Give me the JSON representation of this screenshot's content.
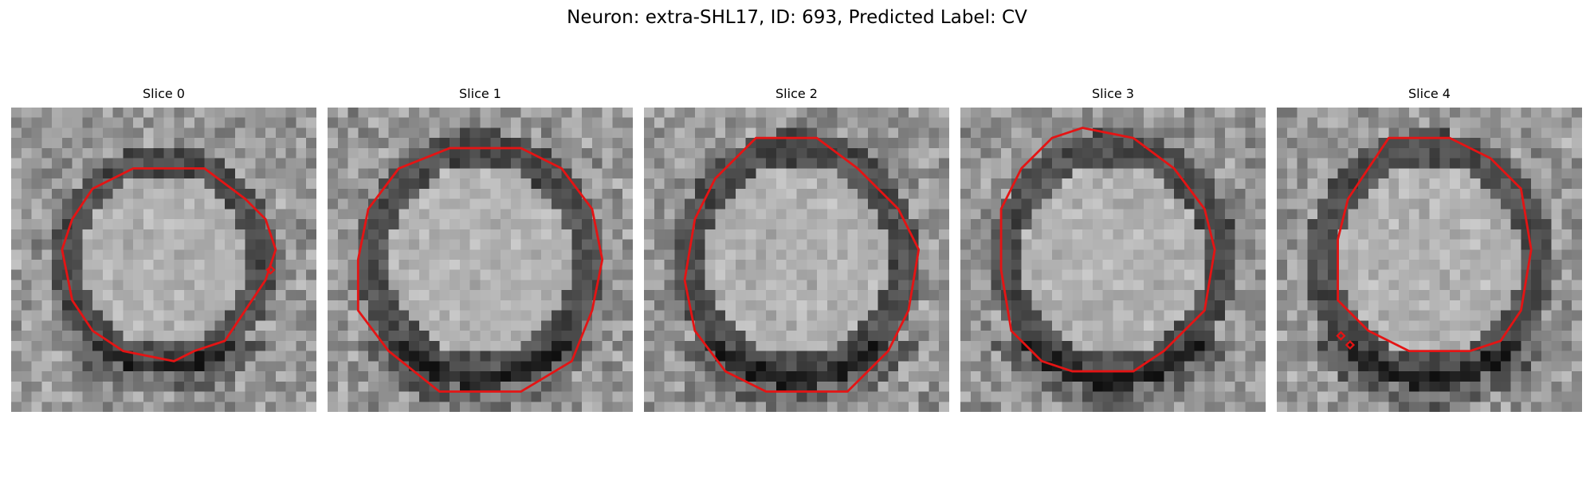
{
  "figure": {
    "title": "Neuron: extra-SHL17, ID: 693, Predicted Label: CV"
  },
  "slices": [
    {
      "label": "Slice 0",
      "contour": [
        [
          16,
          6
        ],
        [
          19,
          6
        ],
        [
          23,
          9
        ],
        [
          25,
          11
        ],
        [
          26,
          14
        ],
        [
          25,
          17
        ],
        [
          23,
          20
        ],
        [
          21,
          23
        ],
        [
          18,
          24
        ],
        [
          16,
          25
        ],
        [
          11,
          24
        ],
        [
          8,
          22
        ],
        [
          6,
          19
        ],
        [
          5,
          14
        ],
        [
          6,
          11
        ],
        [
          8,
          8
        ],
        [
          12,
          6
        ]
      ],
      "marks": [
        [
          25.5,
          16
        ]
      ]
    },
    {
      "label": "Slice 1",
      "contour": [
        [
          12,
          4
        ],
        [
          19,
          4
        ],
        [
          23,
          6
        ],
        [
          26,
          10
        ],
        [
          27,
          15
        ],
        [
          26,
          20
        ],
        [
          24,
          25
        ],
        [
          19,
          28
        ],
        [
          11,
          28
        ],
        [
          6,
          24
        ],
        [
          3,
          20
        ],
        [
          3,
          15
        ],
        [
          4,
          10
        ],
        [
          7,
          6
        ]
      ],
      "marks": []
    },
    {
      "label": "Slice 2",
      "contour": [
        [
          11,
          3
        ],
        [
          17,
          3
        ],
        [
          21,
          6
        ],
        [
          25,
          10
        ],
        [
          27,
          14
        ],
        [
          26,
          20
        ],
        [
          24,
          24
        ],
        [
          20,
          28
        ],
        [
          12,
          28
        ],
        [
          8,
          26
        ],
        [
          5,
          22
        ],
        [
          4,
          17
        ],
        [
          5,
          11
        ],
        [
          7,
          7
        ]
      ],
      "marks": []
    },
    {
      "label": "Slice 3",
      "contour": [
        [
          12,
          2
        ],
        [
          17,
          3
        ],
        [
          21,
          6
        ],
        [
          24,
          10
        ],
        [
          25,
          14
        ],
        [
          24,
          20
        ],
        [
          20,
          24
        ],
        [
          17,
          26
        ],
        [
          11,
          26
        ],
        [
          8,
          25
        ],
        [
          5,
          22
        ],
        [
          4,
          16
        ],
        [
          4,
          10
        ],
        [
          6,
          6
        ],
        [
          9,
          3
        ]
      ],
      "marks": []
    },
    {
      "label": "Slice 4",
      "contour": [
        [
          11,
          3
        ],
        [
          17,
          3
        ],
        [
          21,
          5
        ],
        [
          24,
          8
        ],
        [
          25,
          14
        ],
        [
          24,
          20
        ],
        [
          22,
          23
        ],
        [
          19,
          24
        ],
        [
          13,
          24
        ],
        [
          9,
          22
        ],
        [
          6,
          19
        ],
        [
          6,
          13
        ],
        [
          7,
          9
        ],
        [
          9,
          6
        ]
      ],
      "marks": [
        [
          6.3,
          22.5
        ],
        [
          7.2,
          23.4
        ]
      ]
    }
  ],
  "colors": {
    "contour": "#e41414"
  }
}
